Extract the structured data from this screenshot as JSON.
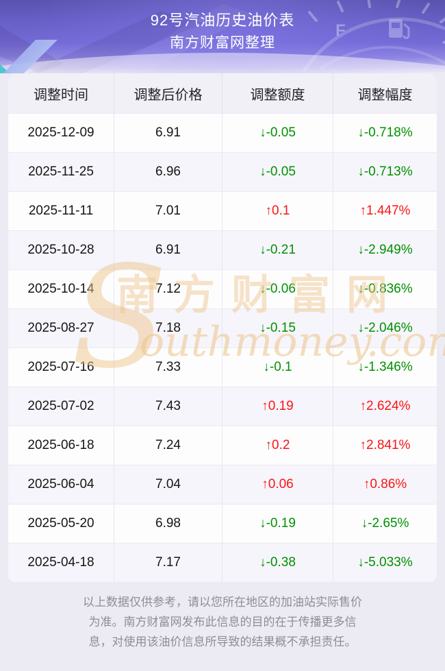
{
  "header": {
    "title": "92号汽油历史油价表",
    "subtitle": "南方财富网整理"
  },
  "chart_data": {
    "type": "table",
    "title": "92号汽油历史油价表",
    "subtitle": "南方财富网整理",
    "columns": [
      "调整时间",
      "调整后价格",
      "调整额度",
      "调整幅度"
    ],
    "rows": [
      {
        "date": "2025-12-09",
        "price": "6.91",
        "change": "↓-0.05",
        "percent": "↓-0.718%",
        "direction": "down"
      },
      {
        "date": "2025-11-25",
        "price": "6.96",
        "change": "↓-0.05",
        "percent": "↓-0.713%",
        "direction": "down"
      },
      {
        "date": "2025-11-11",
        "price": "7.01",
        "change": "↑0.1",
        "percent": "↑1.447%",
        "direction": "up"
      },
      {
        "date": "2025-10-28",
        "price": "6.91",
        "change": "↓-0.21",
        "percent": "↓-2.949%",
        "direction": "down"
      },
      {
        "date": "2025-10-14",
        "price": "7.12",
        "change": "↓-0.06",
        "percent": "↓-0.836%",
        "direction": "down"
      },
      {
        "date": "2025-08-27",
        "price": "7.18",
        "change": "↓-0.15",
        "percent": "↓-2.046%",
        "direction": "down"
      },
      {
        "date": "2025-07-16",
        "price": "7.33",
        "change": "↓-0.1",
        "percent": "↓-1.346%",
        "direction": "down"
      },
      {
        "date": "2025-07-02",
        "price": "7.43",
        "change": "↑0.19",
        "percent": "↑2.624%",
        "direction": "up"
      },
      {
        "date": "2025-06-18",
        "price": "7.24",
        "change": "↑0.2",
        "percent": "↑2.841%",
        "direction": "up"
      },
      {
        "date": "2025-06-04",
        "price": "7.04",
        "change": "↑0.06",
        "percent": "↑0.86%",
        "direction": "up"
      },
      {
        "date": "2025-05-20",
        "price": "6.98",
        "change": "↓-0.19",
        "percent": "↓-2.65%",
        "direction": "down"
      },
      {
        "date": "2025-04-18",
        "price": "7.17",
        "change": "↓-0.38",
        "percent": "↓-5.033%",
        "direction": "down"
      }
    ]
  },
  "watermark": {
    "initial": "S",
    "cn": "南方财富网",
    "en": "outhmoney.com"
  },
  "footer": {
    "lines": [
      "以上数据仅供参考，请以您所在地区的加油站实际售价",
      "为准。南方财富网发布此信息的目的在于传播更多信",
      "息，对使用该油价信息所导致的结果概不承担责任。"
    ]
  },
  "colors": {
    "up_red": "#fb1414",
    "down_green": "#009000",
    "watermark_tan": "#eec387",
    "banner_purple": "#746ad6",
    "page_bg": "#ecebf4"
  }
}
